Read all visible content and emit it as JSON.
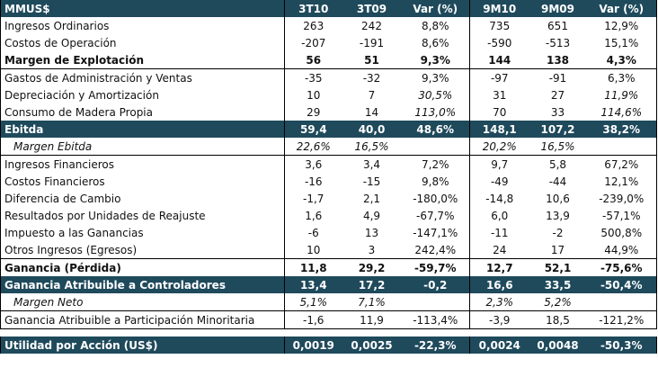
{
  "colors": {
    "header_bg": "#1f4a5c"
  },
  "header": {
    "label": "MMUS$",
    "cols": [
      "3T10",
      "3T09",
      "Var (%)",
      "9M10",
      "9M09",
      "Var (%)"
    ]
  },
  "rows": [
    {
      "label": "Ingresos Ordinarios",
      "values": [
        "263",
        "242",
        "8,8%",
        "735",
        "651",
        "12,9%"
      ],
      "style": ""
    },
    {
      "label": "Costos de Operación",
      "values": [
        "-207",
        "-191",
        "8,6%",
        "-590",
        "-513",
        "15,1%"
      ],
      "style": ""
    },
    {
      "label": "Margen de Explotación",
      "values": [
        "56",
        "51",
        "9,3%",
        "144",
        "138",
        "4,3%"
      ],
      "style": "bold botline"
    },
    {
      "label": "Gastos de Administración y Ventas",
      "values": [
        "-35",
        "-32",
        "9,3%",
        "-97",
        "-91",
        "6,3%"
      ],
      "style": ""
    },
    {
      "label": "Depreciación y Amortización",
      "values": [
        "10",
        "7",
        "30,5%",
        "31",
        "27",
        "11,9%"
      ],
      "style": "",
      "italic_var": true
    },
    {
      "label": "Consumo de Madera Propia",
      "values": [
        "29",
        "14",
        "113,0%",
        "70",
        "33",
        "114,6%"
      ],
      "style": "",
      "italic_var": true
    },
    {
      "label": "Ebitda",
      "values": [
        "59,4",
        "40,0",
        "48,6%",
        "148,1",
        "107,2",
        "38,2%"
      ],
      "style": "dark"
    },
    {
      "label": "Margen Ebitda",
      "values": [
        "22,6%",
        "16,5%",
        "",
        "20,2%",
        "16,5%",
        ""
      ],
      "style": "italic botline"
    },
    {
      "label": "Ingresos Financieros",
      "values": [
        "3,6",
        "3,4",
        "7,2%",
        "9,7",
        "5,8",
        "67,2%"
      ],
      "style": ""
    },
    {
      "label": "Costos Financieros",
      "values": [
        "-16",
        "-15",
        "9,8%",
        "-49",
        "-44",
        "12,1%"
      ],
      "style": ""
    },
    {
      "label": "Diferencia de Cambio",
      "values": [
        "-1,7",
        "2,1",
        "-180,0%",
        "-14,8",
        "10,6",
        "-239,0%"
      ],
      "style": ""
    },
    {
      "label": "Resultados por Unidades de Reajuste",
      "values": [
        "1,6",
        "4,9",
        "-67,7%",
        "6,0",
        "13,9",
        "-57,1%"
      ],
      "style": ""
    },
    {
      "label": "Impuesto a las Ganancias",
      "values": [
        "-6",
        "13",
        "-147,1%",
        "-11",
        "-2",
        "500,8%"
      ],
      "style": ""
    },
    {
      "label": "Otros Ingresos (Egresos)",
      "values": [
        "10",
        "3",
        "242,4%",
        "24",
        "17",
        "44,9%"
      ],
      "style": ""
    },
    {
      "label": "Ganancia (Pérdida)",
      "values": [
        "11,8",
        "29,2",
        "-59,7%",
        "12,7",
        "52,1",
        "-75,6%"
      ],
      "style": "bold topline"
    },
    {
      "label": "Ganancia Atribuible a Controladores",
      "values": [
        "13,4",
        "17,2",
        "-0,2",
        "16,6",
        "33,5",
        "-50,4%"
      ],
      "style": "dark"
    },
    {
      "label": "Margen Neto",
      "values": [
        "5,1%",
        "7,1%",
        "",
        "2,3%",
        "5,2%",
        ""
      ],
      "style": "italic botline"
    },
    {
      "label": "Ganancia Atribuible a Participación Minoritaria",
      "values": [
        "-1,6",
        "11,9",
        "-113,4%",
        "-3,9",
        "18,5",
        "-121,2%"
      ],
      "style": "botline"
    }
  ],
  "footer": {
    "label": "Utilidad por Acción (US$)",
    "values": [
      "0,0019",
      "0,0025",
      "-22,3%",
      "0,0024",
      "0,0048",
      "-50,3%"
    ]
  }
}
